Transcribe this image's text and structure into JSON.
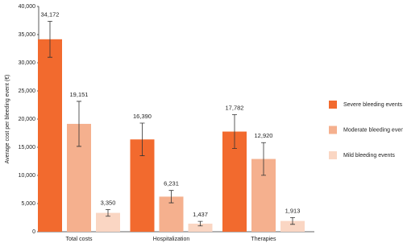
{
  "chart_data": {
    "type": "bar",
    "y_label": "Average cost per bleeding event (€)",
    "categories": [
      "Total costs",
      "Hospitalization",
      "Therapies"
    ],
    "series": [
      {
        "name": "Severe bleeding events",
        "color": "#f26a2e",
        "values": [
          34172,
          16390,
          17782
        ],
        "value_labels": [
          "34,172",
          "16,390",
          "17,782"
        ],
        "errors": [
          3200,
          2900,
          3000
        ]
      },
      {
        "name": "Moderate bleeding events",
        "color": "#f5b08e",
        "values": [
          19151,
          6231,
          12920
        ],
        "value_labels": [
          "19,151",
          "6,231",
          "12,920"
        ],
        "errors": [
          4000,
          1100,
          2900
        ]
      },
      {
        "name": "Mild bleeding events",
        "color": "#fad6c3",
        "values": [
          3350,
          1437,
          1913
        ],
        "value_labels": [
          "3,350",
          "1,437",
          "1,913"
        ],
        "errors": [
          600,
          400,
          600
        ]
      }
    ],
    "ylim": [
      0,
      40000
    ],
    "yticks": [
      0,
      {
        "value": 5000,
        "label": "5,000"
      },
      {
        "value": 10000,
        "label": "10,000"
      },
      {
        "value": 15000,
        "label": "15,000"
      },
      {
        "value": 20000,
        "label": "20,000"
      },
      {
        "value": 25000,
        "label": "25,000"
      },
      {
        "value": 30000,
        "label": "30,000"
      },
      {
        "value": 35000,
        "label": "35,000"
      },
      {
        "value": 40000,
        "label": "40,000"
      }
    ],
    "legend": "right"
  }
}
